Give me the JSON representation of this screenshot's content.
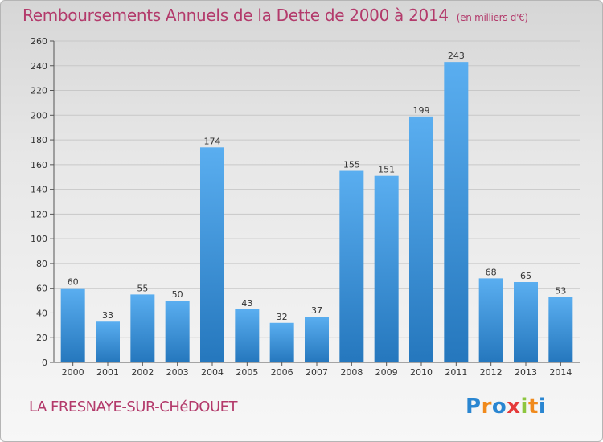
{
  "chart_data": {
    "type": "bar",
    "title": "Remboursements Annuels de la Dette de 2000 à 2014",
    "subtitle": "(en milliers d'€)",
    "categories": [
      "2000",
      "2001",
      "2002",
      "2003",
      "2004",
      "2005",
      "2006",
      "2007",
      "2008",
      "2009",
      "2010",
      "2011",
      "2012",
      "2013",
      "2014"
    ],
    "values": [
      60,
      33,
      55,
      50,
      174,
      43,
      32,
      37,
      155,
      151,
      199,
      243,
      68,
      65,
      53
    ],
    "ylim": [
      0,
      260
    ],
    "yticks": [
      0,
      20,
      40,
      60,
      80,
      100,
      120,
      140,
      160,
      180,
      200,
      220,
      240,
      260
    ],
    "xlabel": "",
    "ylabel": "",
    "grid": true
  },
  "footer": {
    "commune": "LA FRESNAYE-SUR-CHéDOUET",
    "logo_letters": [
      "P",
      "r",
      "o",
      "x",
      "i",
      "t",
      "i"
    ],
    "logo_colors": [
      "#2a86d1",
      "#f08a1c",
      "#2a86d1",
      "#e53a3a",
      "#8dc63f",
      "#f08a1c",
      "#2a86d1"
    ]
  },
  "colors": {
    "bar_light": "#5aaef0",
    "bar_dark": "#2577bd",
    "accent": "#b33a6b",
    "grid": "#c8c8c8"
  }
}
